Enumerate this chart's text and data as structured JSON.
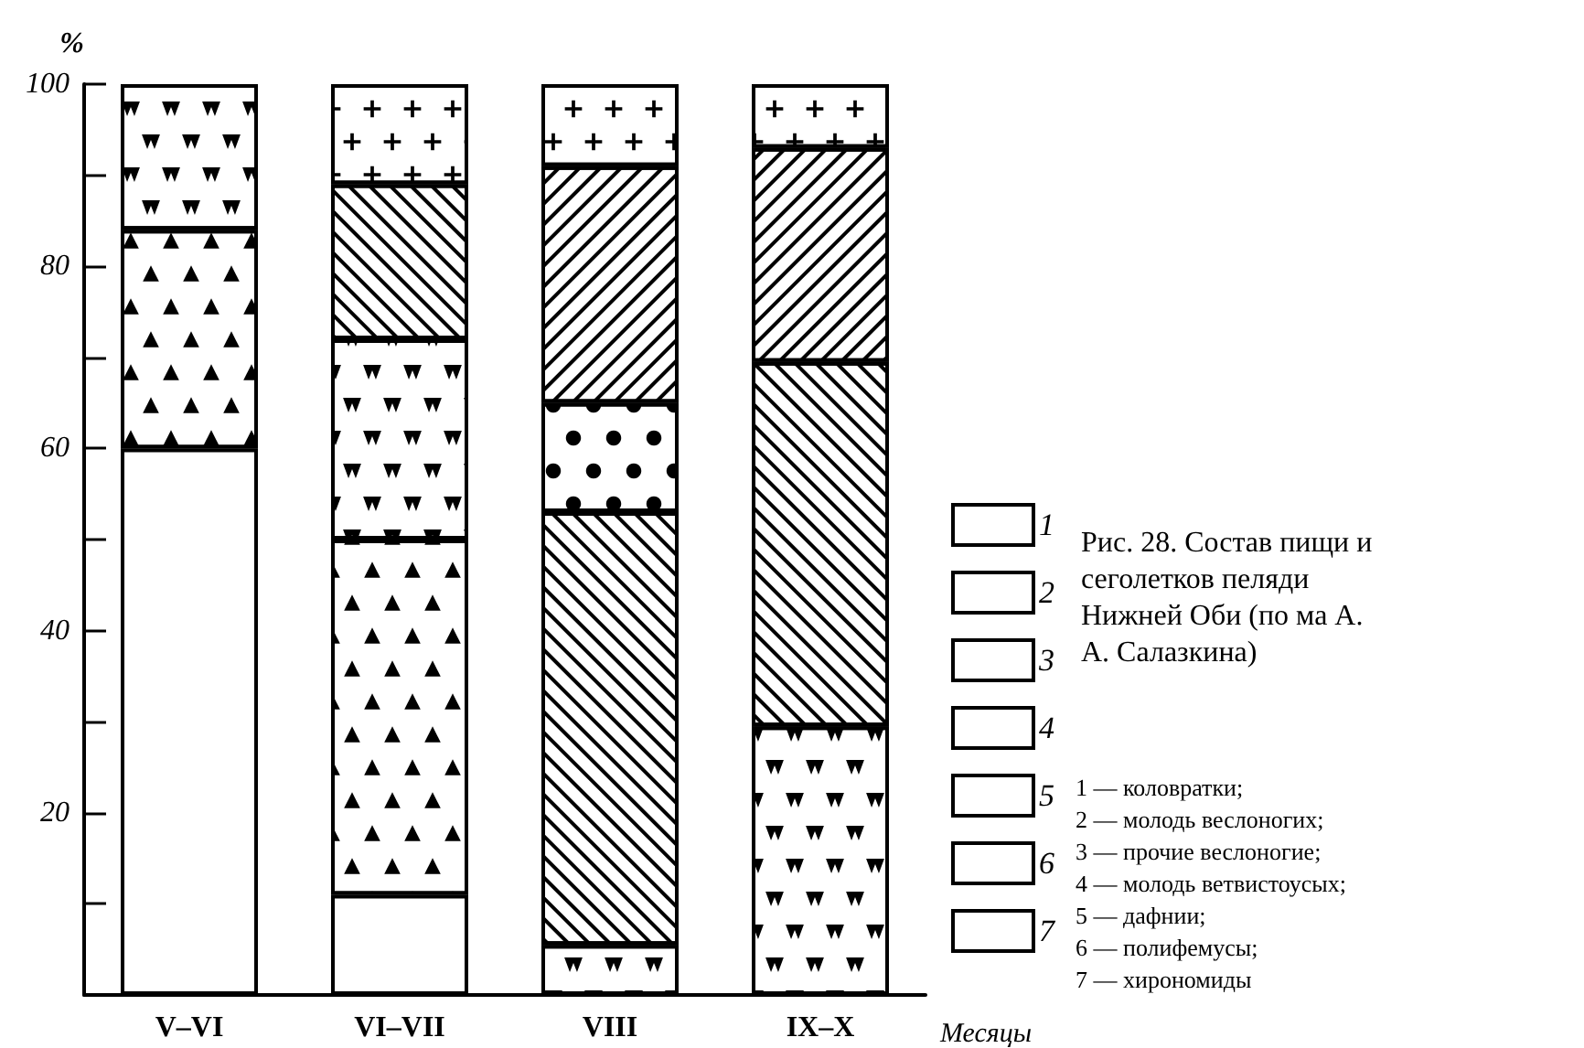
{
  "chart_data": {
    "type": "bar",
    "stacked": true,
    "title": "Рис. 28. Состав пищи и сеголетков пеляди Нижней Оби (по ма А. А. Салазкина)",
    "xlabel": "Месяцы",
    "ylabel": "%",
    "categories": [
      "V–VI",
      "VI–VII",
      "VIII",
      "IX–X"
    ],
    "series": [
      {
        "name": "1",
        "color": "#ffffff",
        "values": [
          60,
          11,
          null,
          null
        ]
      },
      {
        "name": "2",
        "color": "#ffffff",
        "values": [
          24,
          39,
          null,
          null
        ]
      },
      {
        "name": "4",
        "color": "#ffffff",
        "values": [
          16,
          22,
          5.5,
          29.5
        ]
      },
      {
        "name": "5",
        "color": "#ffffff",
        "values": [
          null,
          17,
          47.5,
          40
        ]
      },
      {
        "name": "6",
        "color": "#ffffff",
        "values": [
          null,
          null,
          12,
          null
        ]
      },
      {
        "name": "3",
        "color": "#ffffff",
        "values": [
          null,
          null,
          26,
          23.5
        ]
      },
      {
        "name": "7",
        "color": "#ffffff",
        "values": [
          null,
          11,
          9,
          7
        ]
      }
    ],
    "ylim": [
      0,
      100
    ],
    "yticks": [
      {
        "value": 0,
        "label": null
      },
      {
        "value": 10,
        "label": null
      },
      20,
      {
        "value": 30,
        "label": null
      },
      40,
      {
        "value": 50,
        "label": null
      },
      60,
      {
        "value": 70,
        "label": null
      },
      80,
      {
        "value": 90,
        "label": null
      },
      100
    ],
    "grid": false,
    "legend": "right",
    "annotations": [
      "1 — коловратки;",
      "2 — молодь веслоногих;",
      "3 — прочие веслоногие;",
      "4 — молодь ветвистоусых;",
      "5 — дафнии;",
      "6 — полифемусы;",
      "7 — хирономиды"
    ]
  }
}
